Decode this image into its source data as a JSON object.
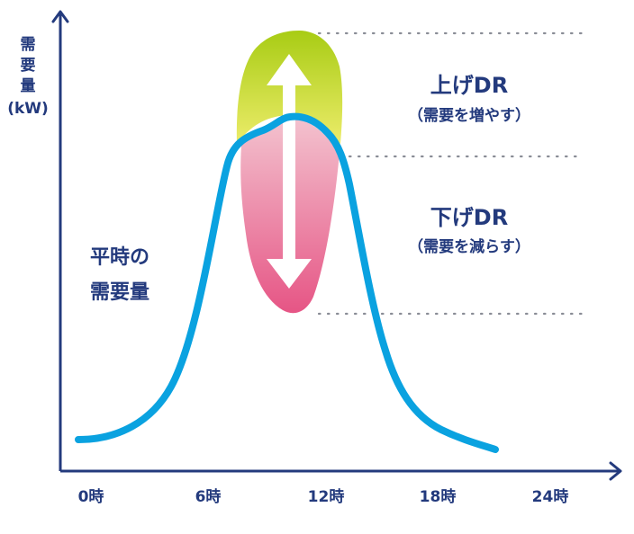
{
  "y_axis": {
    "label_lines": [
      "需",
      "要",
      "量"
    ],
    "unit": "(kW)"
  },
  "x_axis": {
    "ticks": [
      "0時",
      "6時",
      "12時",
      "18時",
      "24時"
    ]
  },
  "normal_demand": {
    "lines": [
      "平時の",
      "需要量"
    ]
  },
  "upward_dr": {
    "title": "上げDR",
    "subtitle": "（需要を増やす）"
  },
  "downward_dr": {
    "title": "下げDR",
    "subtitle": "（需要を減らす）"
  },
  "colors": {
    "axis": "#233a7d",
    "curve": "#0aa2e0",
    "upward_fill_top": "#a8cc14",
    "upward_fill_bottom": "#ecec6a",
    "downward_fill_top": "#f3c3cf",
    "downward_fill_bottom": "#e65585",
    "guide": "#8a8d96"
  }
}
